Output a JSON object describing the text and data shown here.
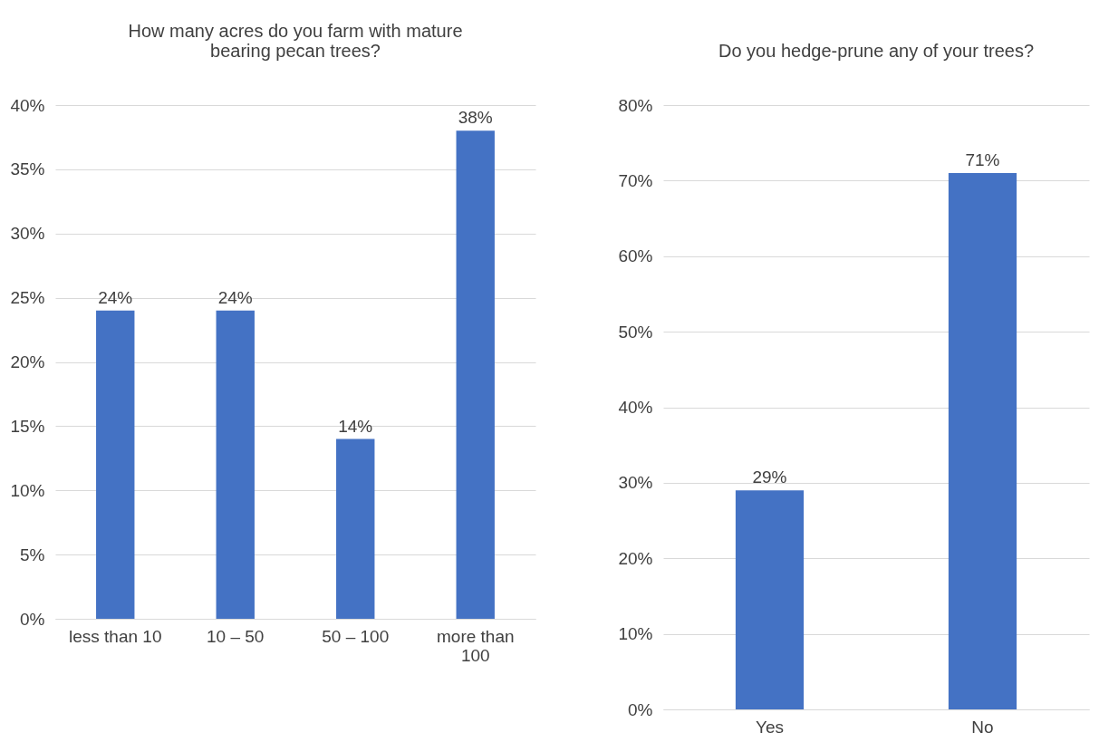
{
  "chart_data": [
    {
      "type": "bar",
      "title": "How many acres do you farm with mature bearing pecan trees?",
      "categories": [
        "less than 10",
        "10 – 50",
        "50 – 100",
        "more than 100"
      ],
      "values": [
        24,
        24,
        14,
        38
      ],
      "value_labels": [
        "24%",
        "24%",
        "14%",
        "38%"
      ],
      "color": "#4472c4",
      "ylim": [
        0,
        40
      ],
      "yticks": [
        {
          "value": 0,
          "label": "0%"
        },
        {
          "value": 5,
          "label": "5%"
        },
        {
          "value": 10,
          "label": "10%"
        },
        {
          "value": 15,
          "label": "15%"
        },
        {
          "value": 20,
          "label": "20%"
        },
        {
          "value": 25,
          "label": "25%"
        },
        {
          "value": 30,
          "label": "30%"
        },
        {
          "value": 35,
          "label": "35%"
        },
        {
          "value": 40,
          "label": "40%"
        }
      ],
      "grid": true
    },
    {
      "type": "bar",
      "title": "Do you hedge-prune any of your trees?",
      "categories": [
        "Yes",
        "No"
      ],
      "values": [
        29,
        71
      ],
      "value_labels": [
        "29%",
        "71%"
      ],
      "color": "#4472c4",
      "ylim": [
        0,
        80
      ],
      "yticks": [
        {
          "value": 0,
          "label": "0%"
        },
        {
          "value": 10,
          "label": "10%"
        },
        {
          "value": 20,
          "label": "20%"
        },
        {
          "value": 30,
          "label": "30%"
        },
        {
          "value": 40,
          "label": "40%"
        },
        {
          "value": 50,
          "label": "50%"
        },
        {
          "value": 60,
          "label": "60%"
        },
        {
          "value": 70,
          "label": "70%"
        },
        {
          "value": 80,
          "label": "80%"
        }
      ],
      "grid": true
    }
  ]
}
